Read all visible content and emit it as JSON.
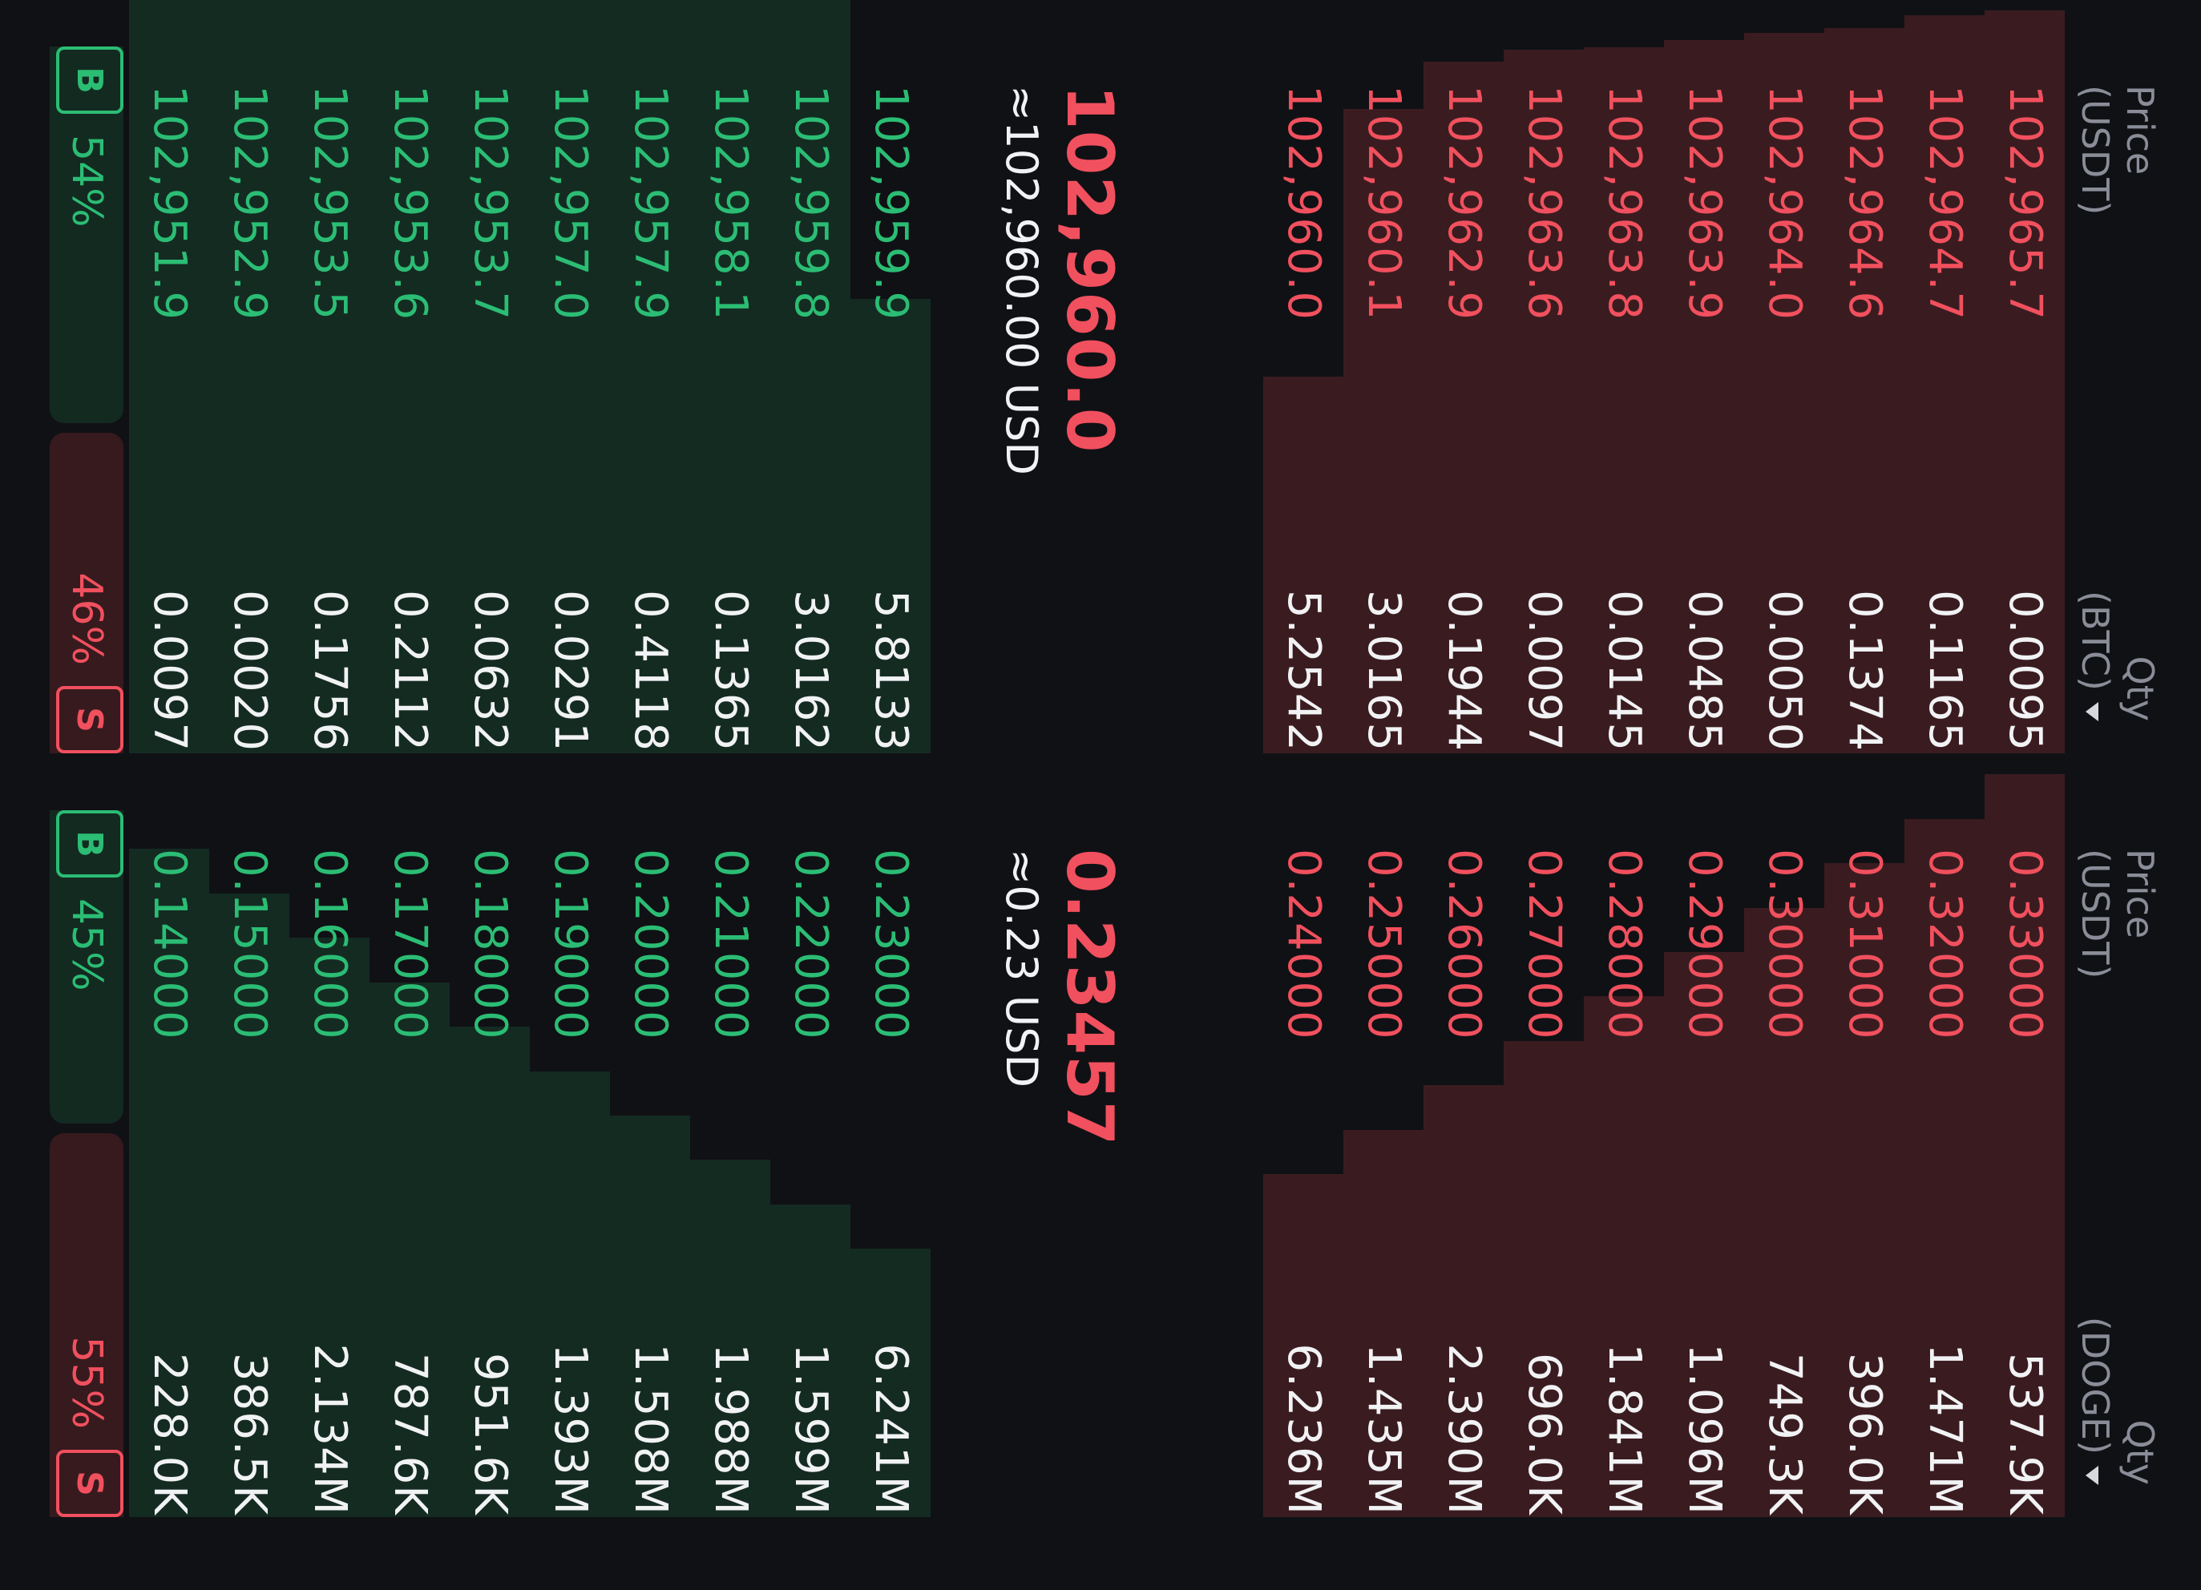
{
  "colors": {
    "background": "#101115",
    "ask_text": "#f1505e",
    "bid_text": "#2bbd74",
    "ask_depth": "#3a1c20",
    "bid_depth": "#142b22",
    "qty_text": "#f1f2f4",
    "header_text": "#8a8d97"
  },
  "btc": {
    "header": {
      "price_line1": "Price",
      "price_line2": "(USDT)",
      "qty_line1": "Qty",
      "qty_line2": "(BTC)",
      "qty_icon": "caret-down-icon"
    },
    "asks": [
      {
        "price": "102,965.7",
        "qty": "0.0095",
        "depth": 0.986
      },
      {
        "price": "102,964.7",
        "qty": "0.1165",
        "depth": 0.98
      },
      {
        "price": "102,964.6",
        "qty": "0.1374",
        "depth": 0.963
      },
      {
        "price": "102,964.0",
        "qty": "0.0050",
        "depth": 0.956
      },
      {
        "price": "102,963.9",
        "qty": "0.0485",
        "depth": 0.947
      },
      {
        "price": "102,963.8",
        "qty": "0.0145",
        "depth": 0.937
      },
      {
        "price": "102,963.6",
        "qty": "0.0097",
        "depth": 0.934
      },
      {
        "price": "102,962.9",
        "qty": "0.1944",
        "depth": 0.918
      },
      {
        "price": "102,960.1",
        "qty": "3.0165",
        "depth": 0.855
      },
      {
        "price": "102,960.0",
        "qty": "5.2542",
        "depth": 0.5
      }
    ],
    "mid": {
      "price": "102,960.0",
      "usd": "≈102,960.00 USD"
    },
    "bids": [
      {
        "price": "102,959.9",
        "qty": "5.8133",
        "depth": 0.603
      },
      {
        "price": "102,959.8",
        "qty": "3.0162",
        "depth": 1.0
      },
      {
        "price": "102,958.1",
        "qty": "0.1365",
        "depth": 1.0
      },
      {
        "price": "102,957.9",
        "qty": "0.4118",
        "depth": 1.0
      },
      {
        "price": "102,957.0",
        "qty": "0.0291",
        "depth": 1.0
      },
      {
        "price": "102,953.7",
        "qty": "0.0632",
        "depth": 1.0
      },
      {
        "price": "102,953.6",
        "qty": "0.2112",
        "depth": 1.0
      },
      {
        "price": "102,953.5",
        "qty": "0.1756",
        "depth": 1.0
      },
      {
        "price": "102,952.9",
        "qty": "0.0020",
        "depth": 1.0
      },
      {
        "price": "102,951.9",
        "qty": "0.0097",
        "depth": 1.0
      }
    ],
    "ratio": {
      "b_label": "B",
      "b_pct": "54%",
      "s_label": "S",
      "s_pct": "46%",
      "b_share": 0.54
    }
  },
  "doge": {
    "header": {
      "price_line1": "Price",
      "price_line2": "(USDT)",
      "qty_line1": "Qty",
      "qty_line2": "(DOGE)",
      "qty_icon": "caret-down-icon"
    },
    "asks": [
      {
        "price": "0.33000",
        "qty": "537.9K",
        "depth": 0.986
      },
      {
        "price": "0.32000",
        "qty": "1.471M",
        "depth": 0.927
      },
      {
        "price": "0.31000",
        "qty": "396.0K",
        "depth": 0.868
      },
      {
        "price": "0.30000",
        "qty": "749.3K",
        "depth": 0.809
      },
      {
        "price": "0.29000",
        "qty": "1.096M",
        "depth": 0.75
      },
      {
        "price": "0.28000",
        "qty": "1.841M",
        "depth": 0.691
      },
      {
        "price": "0.27000",
        "qty": "696.0K",
        "depth": 0.632
      },
      {
        "price": "0.26000",
        "qty": "2.390M",
        "depth": 0.573
      },
      {
        "price": "0.25000",
        "qty": "1.435M",
        "depth": 0.514
      },
      {
        "price": "0.24000",
        "qty": "6.236M",
        "depth": 0.455
      }
    ],
    "mid": {
      "price": "0.23457",
      "usd": "≈0.23 USD"
    },
    "bids": [
      {
        "price": "0.23000",
        "qty": "6.241M",
        "depth": 0.356
      },
      {
        "price": "0.22000",
        "qty": "1.599M",
        "depth": 0.415
      },
      {
        "price": "0.21000",
        "qty": "1.988M",
        "depth": 0.474
      },
      {
        "price": "0.20000",
        "qty": "1.508M",
        "depth": 0.533
      },
      {
        "price": "0.19000",
        "qty": "1.393M",
        "depth": 0.592
      },
      {
        "price": "0.18000",
        "qty": "951.6K",
        "depth": 0.651
      },
      {
        "price": "0.17000",
        "qty": "787.6K",
        "depth": 0.71
      },
      {
        "price": "0.16000",
        "qty": "2.134M",
        "depth": 0.769
      },
      {
        "price": "0.15000",
        "qty": "386.5K",
        "depth": 0.828
      },
      {
        "price": "0.14000",
        "qty": "228.0K",
        "depth": 0.887
      }
    ],
    "ratio": {
      "b_label": "B",
      "b_pct": "45%",
      "s_label": "S",
      "s_pct": "55%",
      "b_share": 0.45
    }
  }
}
